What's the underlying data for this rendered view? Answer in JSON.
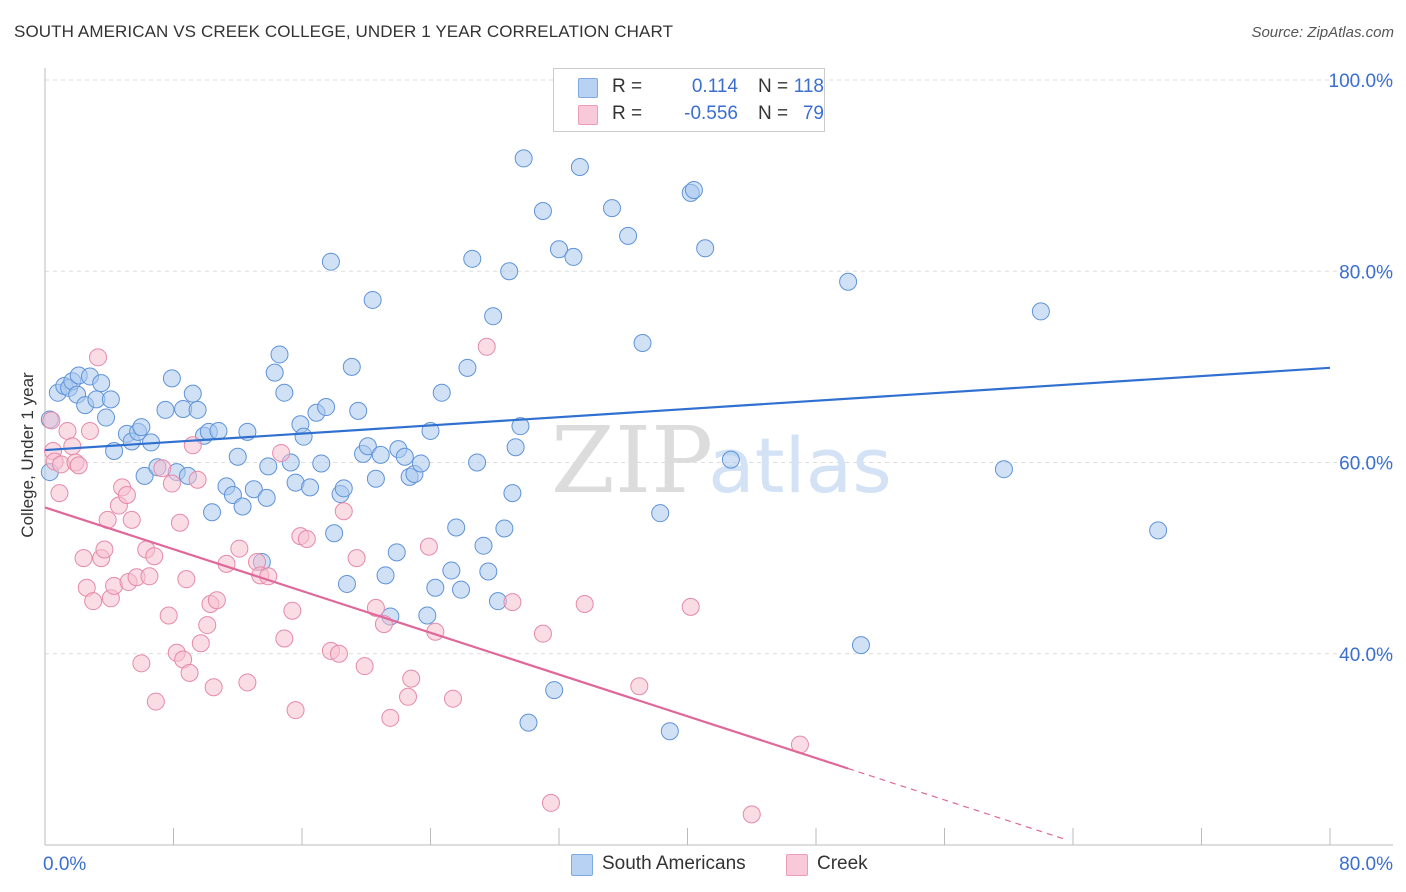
{
  "title": "SOUTH AMERICAN VS CREEK COLLEGE, UNDER 1 YEAR CORRELATION CHART",
  "source": "Source: ZipAtlas.com",
  "watermark": {
    "zip": "ZIP",
    "atlas": "atlas"
  },
  "legend": {
    "series1": {
      "r_label": "R =",
      "r_value": "0.114",
      "n_label": "N =",
      "n_value": "118"
    },
    "series2": {
      "r_label": "R =",
      "r_value": "-0.556",
      "n_label": "N =",
      "n_value": "79"
    }
  },
  "bottom_legend": {
    "series1": "South Americans",
    "series2": "Creek"
  },
  "colors": {
    "blue_fill": "#a9c8ee",
    "blue_stroke": "#5f93d8",
    "blue_line": "#3070d0",
    "pink_fill": "#f6bfd0",
    "pink_stroke": "#e58aaa",
    "pink_line": "#e0679a",
    "axis_label": "#3a6fcf",
    "grid": "#dddddd"
  },
  "chart_data": {
    "type": "scatter",
    "title": "SOUTH AMERICAN VS CREEK COLLEGE, UNDER 1 YEAR CORRELATION CHART",
    "xlabel": "",
    "ylabel": "College, Under 1 year",
    "xlim": [
      0,
      80
    ],
    "ylim": [
      20,
      100
    ],
    "x_tick_labels": [
      "0.0%",
      "80.0%"
    ],
    "y_ticks": [
      40,
      60,
      80,
      100
    ],
    "y_tick_labels": [
      "40.0%",
      "60.0%",
      "80.0%",
      "100.0%"
    ],
    "grid": true,
    "series": [
      {
        "name": "South Americans",
        "r": 0.114,
        "n": 118,
        "trend": {
          "x0": 0,
          "y0": 61.3,
          "x1": 80,
          "y1": 69.9
        },
        "points": [
          [
            0.3,
            64.5
          ],
          [
            0.3,
            59.0
          ],
          [
            0.8,
            67.3
          ],
          [
            1.2,
            68.0
          ],
          [
            1.5,
            67.8
          ],
          [
            1.7,
            68.5
          ],
          [
            2.0,
            67.1
          ],
          [
            2.1,
            69.1
          ],
          [
            2.5,
            66.0
          ],
          [
            2.8,
            69.0
          ],
          [
            3.2,
            66.6
          ],
          [
            3.5,
            68.3
          ],
          [
            3.8,
            64.7
          ],
          [
            4.1,
            66.6
          ],
          [
            4.3,
            61.2
          ],
          [
            5.1,
            63.0
          ],
          [
            5.4,
            62.2
          ],
          [
            5.8,
            63.2
          ],
          [
            6.0,
            63.7
          ],
          [
            6.2,
            58.6
          ],
          [
            6.6,
            62.1
          ],
          [
            7.0,
            59.5
          ],
          [
            7.5,
            65.5
          ],
          [
            7.9,
            68.8
          ],
          [
            8.2,
            59.0
          ],
          [
            8.6,
            65.6
          ],
          [
            8.9,
            58.6
          ],
          [
            9.2,
            67.2
          ],
          [
            9.5,
            65.5
          ],
          [
            9.9,
            62.8
          ],
          [
            10.2,
            63.2
          ],
          [
            10.4,
            54.8
          ],
          [
            10.8,
            63.3
          ],
          [
            11.3,
            57.5
          ],
          [
            11.7,
            56.6
          ],
          [
            12.0,
            60.6
          ],
          [
            12.3,
            55.4
          ],
          [
            12.6,
            63.2
          ],
          [
            13.0,
            57.2
          ],
          [
            13.5,
            49.6
          ],
          [
            13.8,
            56.3
          ],
          [
            13.9,
            59.6
          ],
          [
            14.3,
            69.4
          ],
          [
            14.6,
            71.3
          ],
          [
            14.9,
            67.3
          ],
          [
            15.3,
            60.0
          ],
          [
            15.6,
            57.9
          ],
          [
            15.9,
            64.0
          ],
          [
            16.1,
            62.7
          ],
          [
            16.5,
            57.4
          ],
          [
            16.9,
            65.2
          ],
          [
            17.2,
            59.9
          ],
          [
            17.5,
            65.8
          ],
          [
            17.8,
            81.0
          ],
          [
            18.0,
            52.6
          ],
          [
            18.4,
            56.7
          ],
          [
            18.6,
            57.3
          ],
          [
            18.8,
            47.3
          ],
          [
            19.1,
            70.0
          ],
          [
            19.5,
            65.4
          ],
          [
            19.8,
            60.9
          ],
          [
            20.1,
            61.7
          ],
          [
            20.4,
            77.0
          ],
          [
            20.6,
            58.3
          ],
          [
            20.9,
            60.8
          ],
          [
            21.2,
            48.2
          ],
          [
            21.5,
            43.9
          ],
          [
            21.9,
            50.6
          ],
          [
            22.0,
            61.4
          ],
          [
            22.4,
            60.6
          ],
          [
            22.7,
            58.5
          ],
          [
            23.0,
            58.8
          ],
          [
            23.4,
            59.9
          ],
          [
            23.8,
            44.0
          ],
          [
            24.0,
            63.3
          ],
          [
            24.3,
            46.9
          ],
          [
            24.7,
            67.3
          ],
          [
            25.3,
            48.7
          ],
          [
            25.6,
            53.2
          ],
          [
            25.9,
            46.7
          ],
          [
            26.3,
            69.9
          ],
          [
            26.6,
            81.3
          ],
          [
            26.9,
            60.0
          ],
          [
            27.3,
            51.3
          ],
          [
            27.6,
            48.6
          ],
          [
            27.9,
            75.3
          ],
          [
            28.2,
            45.5
          ],
          [
            28.6,
            53.1
          ],
          [
            28.9,
            80.0
          ],
          [
            29.1,
            56.8
          ],
          [
            29.3,
            61.6
          ],
          [
            29.6,
            63.8
          ],
          [
            29.8,
            91.8
          ],
          [
            30.1,
            32.8
          ],
          [
            31.0,
            86.3
          ],
          [
            31.7,
            36.2
          ],
          [
            32.0,
            82.3
          ],
          [
            32.9,
            81.5
          ],
          [
            33.3,
            90.9
          ],
          [
            35.3,
            86.6
          ],
          [
            36.3,
            83.7
          ],
          [
            37.2,
            72.5
          ],
          [
            38.3,
            54.7
          ],
          [
            38.9,
            31.9
          ],
          [
            40.2,
            88.2
          ],
          [
            40.4,
            88.5
          ],
          [
            41.1,
            82.4
          ],
          [
            42.7,
            60.3
          ],
          [
            50.0,
            78.9
          ],
          [
            50.8,
            40.9
          ],
          [
            59.7,
            59.3
          ],
          [
            62.0,
            75.8
          ],
          [
            69.3,
            52.9
          ]
        ]
      },
      {
        "name": "Creek",
        "r": -0.556,
        "n": 79,
        "trend_solid": {
          "x0": 0,
          "y0": 55.3,
          "x1": 50.0,
          "y1": 28.0
        },
        "trend_dashed": {
          "x0": 50.0,
          "y0": 28.0,
          "x1": 63.5,
          "y1": 20.6
        },
        "points": [
          [
            0.4,
            64.4
          ],
          [
            0.5,
            61.2
          ],
          [
            0.6,
            60.1
          ],
          [
            0.9,
            56.8
          ],
          [
            1.0,
            59.8
          ],
          [
            1.4,
            63.3
          ],
          [
            1.7,
            61.7
          ],
          [
            1.9,
            60.0
          ],
          [
            2.1,
            59.7
          ],
          [
            2.4,
            50.0
          ],
          [
            2.6,
            46.9
          ],
          [
            2.8,
            63.3
          ],
          [
            3.0,
            45.5
          ],
          [
            3.3,
            71.0
          ],
          [
            3.5,
            50.0
          ],
          [
            3.7,
            50.9
          ],
          [
            3.9,
            54.0
          ],
          [
            4.1,
            45.8
          ],
          [
            4.3,
            47.1
          ],
          [
            4.6,
            55.5
          ],
          [
            4.8,
            57.4
          ],
          [
            5.1,
            56.6
          ],
          [
            5.2,
            47.5
          ],
          [
            5.4,
            54.0
          ],
          [
            5.7,
            48.0
          ],
          [
            6.0,
            39.0
          ],
          [
            6.3,
            50.9
          ],
          [
            6.5,
            48.1
          ],
          [
            6.8,
            50.2
          ],
          [
            6.9,
            35.0
          ],
          [
            7.3,
            59.4
          ],
          [
            7.7,
            44.0
          ],
          [
            7.9,
            57.8
          ],
          [
            8.2,
            40.1
          ],
          [
            8.4,
            53.7
          ],
          [
            8.6,
            39.4
          ],
          [
            8.8,
            47.8
          ],
          [
            9.0,
            38.0
          ],
          [
            9.2,
            61.8
          ],
          [
            9.5,
            58.2
          ],
          [
            9.7,
            41.1
          ],
          [
            10.1,
            43.0
          ],
          [
            10.3,
            45.2
          ],
          [
            10.5,
            36.5
          ],
          [
            10.7,
            45.6
          ],
          [
            11.3,
            49.4
          ],
          [
            12.1,
            51.0
          ],
          [
            12.6,
            37.0
          ],
          [
            13.2,
            49.6
          ],
          [
            13.4,
            48.2
          ],
          [
            13.9,
            48.1
          ],
          [
            14.7,
            61.0
          ],
          [
            14.9,
            41.6
          ],
          [
            15.4,
            44.5
          ],
          [
            15.6,
            34.1
          ],
          [
            15.9,
            52.3
          ],
          [
            16.3,
            52.0
          ],
          [
            17.8,
            40.3
          ],
          [
            18.3,
            40.0
          ],
          [
            18.6,
            54.9
          ],
          [
            19.4,
            50.0
          ],
          [
            19.9,
            38.7
          ],
          [
            20.6,
            44.8
          ],
          [
            21.1,
            43.1
          ],
          [
            21.5,
            33.3
          ],
          [
            22.6,
            35.5
          ],
          [
            22.8,
            37.4
          ],
          [
            23.9,
            51.2
          ],
          [
            24.3,
            42.3
          ],
          [
            25.4,
            35.3
          ],
          [
            27.5,
            72.1
          ],
          [
            29.1,
            45.4
          ],
          [
            31.0,
            42.1
          ],
          [
            31.5,
            24.4
          ],
          [
            33.6,
            45.2
          ],
          [
            37.0,
            36.6
          ],
          [
            40.2,
            44.9
          ],
          [
            44.0,
            23.2
          ],
          [
            47.0,
            30.5
          ]
        ]
      }
    ]
  }
}
